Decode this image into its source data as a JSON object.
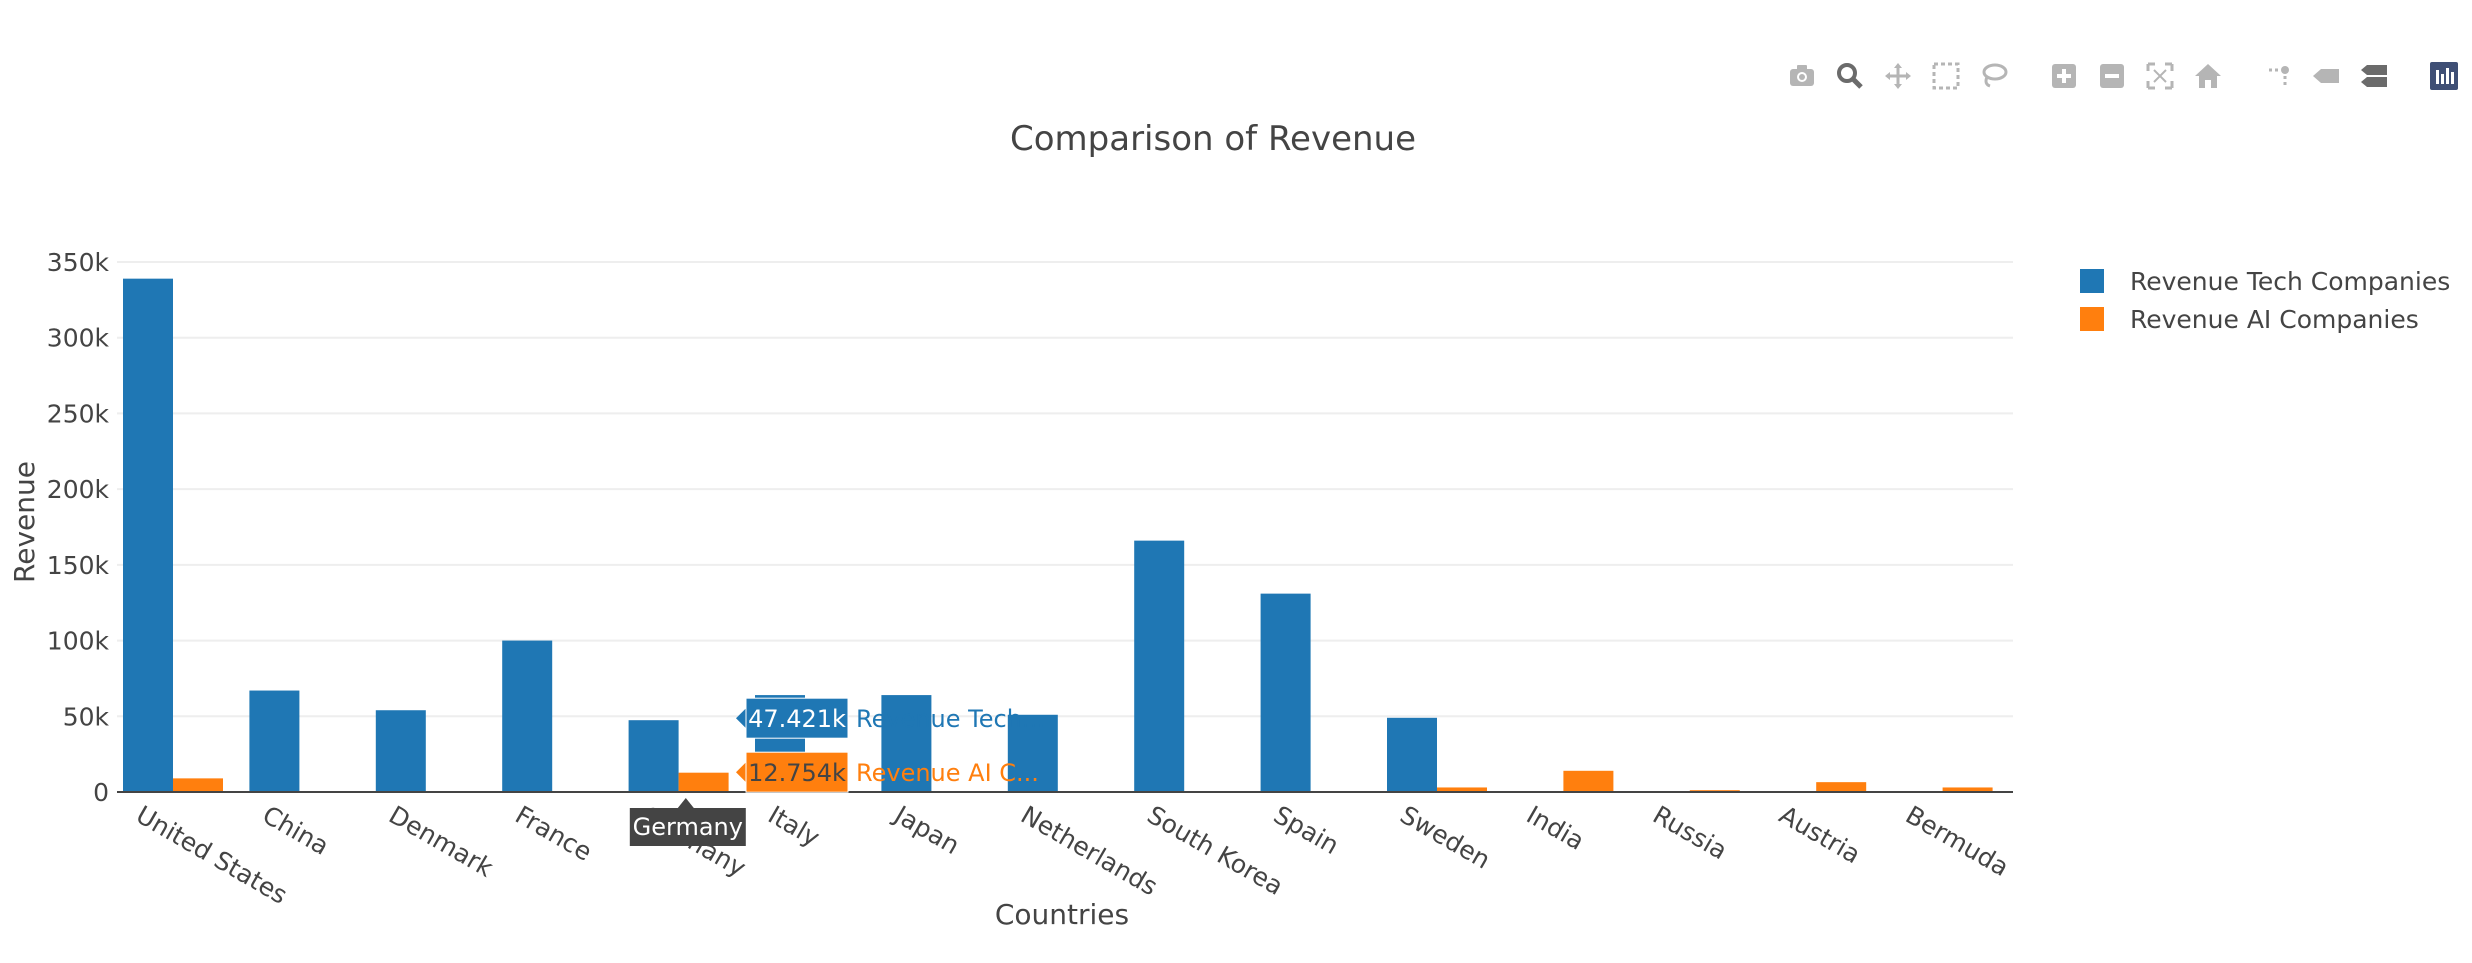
{
  "modebar": {
    "buttons": [
      {
        "icon": "camera-icon",
        "group": 1
      },
      {
        "icon": "zoom-icon",
        "group": 1,
        "active": true
      },
      {
        "icon": "pan-icon",
        "group": 1
      },
      {
        "icon": "box-select-icon",
        "group": 1
      },
      {
        "icon": "lasso-select-icon",
        "group": 1
      },
      {
        "icon": "zoom-in-icon",
        "group": 2
      },
      {
        "icon": "zoom-out-icon",
        "group": 2
      },
      {
        "icon": "autoscale-icon",
        "group": 2
      },
      {
        "icon": "reset-axes-icon",
        "group": 2
      },
      {
        "icon": "spike-lines-icon",
        "group": 3
      },
      {
        "icon": "hover-closest-icon",
        "group": 3
      },
      {
        "icon": "hover-compare-icon",
        "group": 3
      },
      {
        "icon": "plotly-logo-icon",
        "group": 4
      }
    ]
  },
  "chart_data": {
    "type": "bar",
    "title": "Comparison of Revenue",
    "xlabel": "Countries",
    "ylabel": "Revenue",
    "ylim": [
      0,
      350000
    ],
    "yticks": [
      0,
      50000,
      100000,
      150000,
      200000,
      250000,
      300000,
      350000
    ],
    "ytick_labels": [
      "0",
      "50k",
      "100k",
      "150k",
      "200k",
      "250k",
      "300k",
      "350k"
    ],
    "categories": [
      "United States",
      "China",
      "Denmark",
      "France",
      "Germany",
      "Italy",
      "Japan",
      "Netherlands",
      "South Korea",
      "Spain",
      "Sweden",
      "India",
      "Russia",
      "Austria",
      "Bermuda"
    ],
    "series": [
      {
        "name": "Revenue Tech Companies",
        "color": "#1f77b4",
        "values": [
          339000,
          67000,
          54000,
          100000,
          47421,
          64000,
          64000,
          51000,
          166000,
          131000,
          49000,
          0,
          0,
          0,
          0
        ]
      },
      {
        "name": "Revenue AI Companies",
        "color": "#ff7f0e",
        "values": [
          9000,
          0,
          0,
          0,
          12754,
          0,
          0,
          0,
          0,
          0,
          3000,
          14000,
          1200,
          6500,
          3000
        ]
      }
    ],
    "grid": true,
    "legend_position": "top-right",
    "hover": {
      "category": "Germany",
      "labels": [
        {
          "value": "47.421k",
          "name": "Revenue Tech...",
          "color": "#1f77b4"
        },
        {
          "value": "12.754k",
          "name": "Revenue AI C...",
          "color": "#ff7f0e"
        }
      ]
    }
  }
}
